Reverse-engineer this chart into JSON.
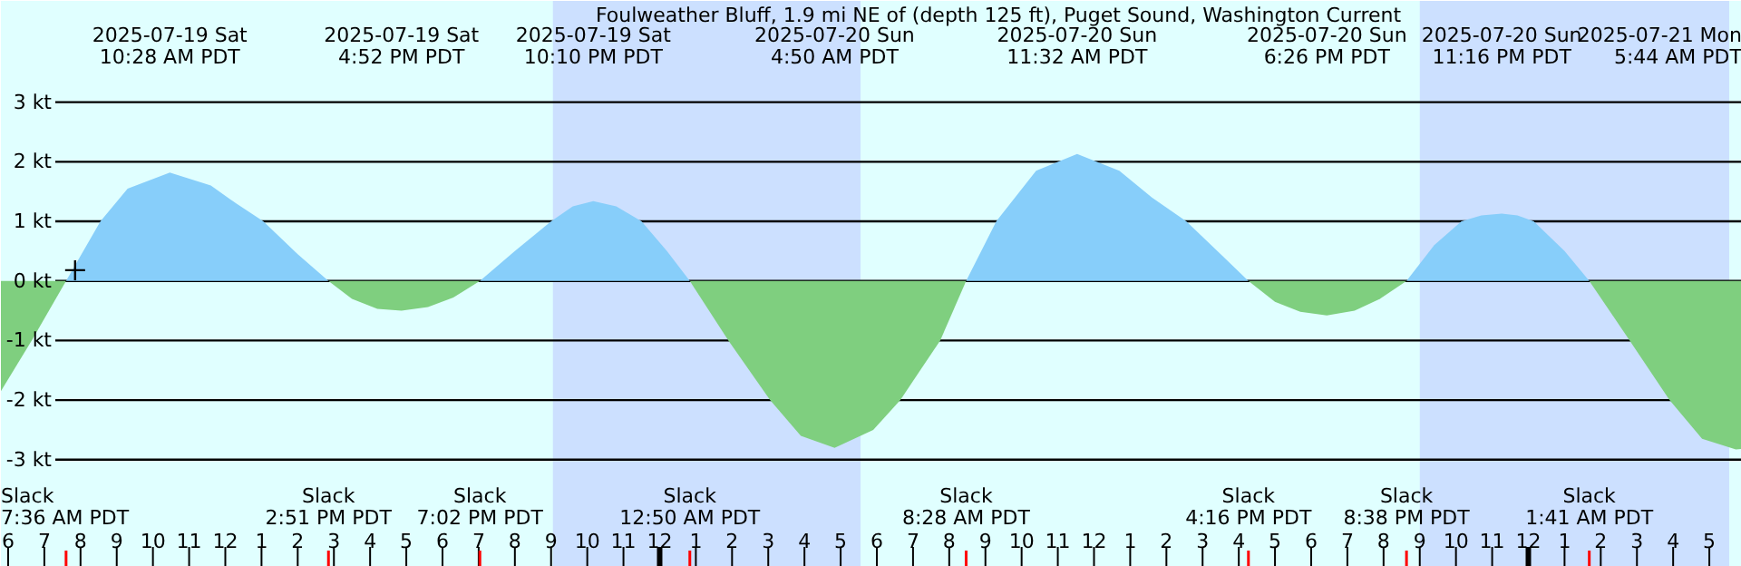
{
  "chart_data": {
    "type": "area",
    "title": "Foulweather Bluff, 1.9 mi NE of (depth 125 ft), Puget Sound, Washington Current",
    "series": [
      {
        "color": "#87cefa",
        "x": [
          "2025-07-19T07:36",
          "2025-07-19T08:33",
          "2025-07-19T09:18",
          "2025-07-19T10:28",
          "2025-07-19T11:36",
          "2025-07-19T12:18",
          "2025-07-19T13:03",
          "2025-07-19T14:00",
          "2025-07-19T14:51",
          null,
          "2025-07-19T19:02",
          "2025-07-19T20:00",
          "2025-07-19T21:00",
          "2025-07-19T21:36",
          "2025-07-19T22:10",
          "2025-07-19T22:48",
          "2025-07-19T23:30",
          "2025-07-20T00:12",
          "2025-07-20T00:50",
          null,
          "2025-07-20T08:28",
          "2025-07-20T09:18",
          "2025-07-20T10:24",
          "2025-07-20T11:32",
          "2025-07-20T12:42",
          "2025-07-20T13:36",
          "2025-07-20T14:33",
          "2025-07-20T15:30",
          "2025-07-20T16:16",
          null,
          "2025-07-20T20:38",
          "2025-07-20T21:24",
          "2025-07-20T22:09",
          "2025-07-20T22:42",
          "2025-07-20T23:16",
          "2025-07-20T23:42",
          "2025-07-21T00:09",
          "2025-07-21T01:00",
          "2025-07-21T01:41"
        ],
        "values": [
          0,
          1.0,
          1.55,
          1.82,
          1.6,
          1.3,
          1.0,
          0.45,
          0,
          null,
          0,
          0.5,
          1.0,
          1.25,
          1.34,
          1.25,
          1.0,
          0.5,
          0,
          null,
          0,
          1.0,
          1.85,
          2.13,
          1.85,
          1.4,
          1.0,
          0.45,
          0,
          null,
          0,
          0.6,
          1.0,
          1.1,
          1.13,
          1.1,
          1.0,
          0.5,
          0
        ]
      },
      {
        "color": "#7fcf7f",
        "x": [
          "2025-07-19T05:48",
          "2025-07-19T06:39",
          "2025-07-19T07:36",
          null,
          "2025-07-19T14:51",
          "2025-07-19T15:30",
          "2025-07-19T16:12",
          "2025-07-19T16:52",
          "2025-07-19T17:36",
          "2025-07-19T18:18",
          "2025-07-19T19:02",
          null,
          "2025-07-20T00:50",
          "2025-07-20T01:54",
          "2025-07-20T03:03",
          "2025-07-20T03:54",
          "2025-07-20T04:50",
          "2025-07-20T05:54",
          "2025-07-20T06:39",
          "2025-07-20T07:45",
          "2025-07-20T08:28",
          null,
          "2025-07-20T16:16",
          "2025-07-20T17:00",
          "2025-07-20T17:42",
          "2025-07-20T18:26",
          "2025-07-20T19:12",
          "2025-07-20T19:54",
          "2025-07-20T20:38",
          null,
          "2025-07-21T01:41",
          "2025-07-21T02:48",
          "2025-07-21T03:54",
          "2025-07-21T04:48",
          "2025-07-21T05:44",
          "2025-07-21T05:54"
        ],
        "values": [
          -1.85,
          -1.0,
          0,
          null,
          0,
          -0.3,
          -0.47,
          -0.5,
          -0.44,
          -0.28,
          0,
          null,
          0,
          -1.0,
          -2.0,
          -2.6,
          -2.8,
          -2.5,
          -2.0,
          -1.0,
          0,
          null,
          0,
          -0.35,
          -0.52,
          -0.58,
          -0.5,
          -0.3,
          0,
          null,
          0,
          -1.0,
          -2.0,
          -2.65,
          -2.83,
          -2.82
        ]
      },
      {
        "type": "scatter",
        "marker": "cross",
        "color": "#000000",
        "x": [
          "2025-07-19T07:51"
        ],
        "values": [
          0.18
        ]
      }
    ],
    "xlim": [
      "2025-07-19T05:48",
      "2025-07-21T05:54"
    ],
    "ylim": [
      -4.8,
      4.7
    ],
    "xticks": [
      {
        "value": "2025-07-19T06:00",
        "label": "6"
      },
      {
        "value": "2025-07-19T07:00",
        "label": "7"
      },
      {
        "value": "2025-07-19T08:00",
        "label": "8"
      },
      {
        "value": "2025-07-19T09:00",
        "label": "9"
      },
      {
        "value": "2025-07-19T10:00",
        "label": "10"
      },
      {
        "value": "2025-07-19T11:00",
        "label": "11"
      },
      {
        "value": "2025-07-19T12:00",
        "label": "12"
      },
      {
        "value": "2025-07-19T13:00",
        "label": "1"
      },
      {
        "value": "2025-07-19T14:00",
        "label": "2"
      },
      {
        "value": "2025-07-19T15:00",
        "label": "3"
      },
      {
        "value": "2025-07-19T16:00",
        "label": "4"
      },
      {
        "value": "2025-07-19T17:00",
        "label": "5"
      },
      {
        "value": "2025-07-19T18:00",
        "label": "6"
      },
      {
        "value": "2025-07-19T19:00",
        "label": "7"
      },
      {
        "value": "2025-07-19T20:00",
        "label": "8"
      },
      {
        "value": "2025-07-19T21:00",
        "label": "9"
      },
      {
        "value": "2025-07-19T22:00",
        "label": "10"
      },
      {
        "value": "2025-07-19T23:00",
        "label": "11"
      },
      {
        "value": "2025-07-20T00:00",
        "label": "12"
      },
      {
        "value": "2025-07-20T01:00",
        "label": "1"
      },
      {
        "value": "2025-07-20T02:00",
        "label": "2"
      },
      {
        "value": "2025-07-20T03:00",
        "label": "3"
      },
      {
        "value": "2025-07-20T04:00",
        "label": "4"
      },
      {
        "value": "2025-07-20T05:00",
        "label": "5"
      },
      {
        "value": "2025-07-20T06:00",
        "label": "6"
      },
      {
        "value": "2025-07-20T07:00",
        "label": "7"
      },
      {
        "value": "2025-07-20T08:00",
        "label": "8"
      },
      {
        "value": "2025-07-20T09:00",
        "label": "9"
      },
      {
        "value": "2025-07-20T10:00",
        "label": "10"
      },
      {
        "value": "2025-07-20T11:00",
        "label": "11"
      },
      {
        "value": "2025-07-20T12:00",
        "label": "12"
      },
      {
        "value": "2025-07-20T13:00",
        "label": "1"
      },
      {
        "value": "2025-07-20T14:00",
        "label": "2"
      },
      {
        "value": "2025-07-20T15:00",
        "label": "3"
      },
      {
        "value": "2025-07-20T16:00",
        "label": "4"
      },
      {
        "value": "2025-07-20T17:00",
        "label": "5"
      },
      {
        "value": "2025-07-20T18:00",
        "label": "6"
      },
      {
        "value": "2025-07-20T19:00",
        "label": "7"
      },
      {
        "value": "2025-07-20T20:00",
        "label": "8"
      },
      {
        "value": "2025-07-20T21:00",
        "label": "9"
      },
      {
        "value": "2025-07-20T22:00",
        "label": "10"
      },
      {
        "value": "2025-07-20T23:00",
        "label": "11"
      },
      {
        "value": "2025-07-21T00:00",
        "label": "12"
      },
      {
        "value": "2025-07-21T01:00",
        "label": "1"
      },
      {
        "value": "2025-07-21T02:00",
        "label": "2"
      },
      {
        "value": "2025-07-21T03:00",
        "label": "3"
      },
      {
        "value": "2025-07-21T04:00",
        "label": "4"
      },
      {
        "value": "2025-07-21T05:00",
        "label": "5"
      }
    ],
    "yticks": [
      {
        "value": 3,
        "label": "3 kt"
      },
      {
        "value": 2,
        "label": "2 kt"
      },
      {
        "value": 1,
        "label": "1 kt"
      },
      {
        "value": 0,
        "label": "0 kt"
      },
      {
        "value": -1,
        "label": "-1 kt"
      },
      {
        "value": -2,
        "label": "-2 kt"
      },
      {
        "value": -3,
        "label": "-3 kt"
      }
    ],
    "grid": "y",
    "bands": [
      {
        "axis": "x",
        "from": "2025-07-19T21:03",
        "to": "2025-07-20T05:33",
        "color": "#cce0ff"
      },
      {
        "axis": "x",
        "from": "2025-07-20T21:00",
        "to": "2025-07-21T05:33",
        "color": "#cce0ff"
      }
    ],
    "annotations": [
      "2025-07-19 Sat\n10:28 AM PDT",
      "2025-07-19 Sat\n4:52 PM PDT",
      "2025-07-19 Sat\n10:10 PM PDT",
      "2025-07-20 Sun\n4:50 AM PDT",
      "2025-07-20 Sun\n11:32 AM PDT",
      "2025-07-20 Sun\n6:26 PM PDT",
      "2025-07-20 Sun\n11:16 PM PDT",
      "2025-07-21 Mon\n5:44 AM PDT",
      "Slack\n7:36 AM PDT",
      "Slack\n2:51 PM PDT",
      "Slack\n7:02 PM PDT",
      "Slack\n12:50 AM PDT",
      "Slack\n8:28 AM PDT",
      "Slack\n4:16 PM PDT",
      "Slack\n8:38 PM PDT",
      "Slack\n1:41 AM PDT"
    ]
  }
}
